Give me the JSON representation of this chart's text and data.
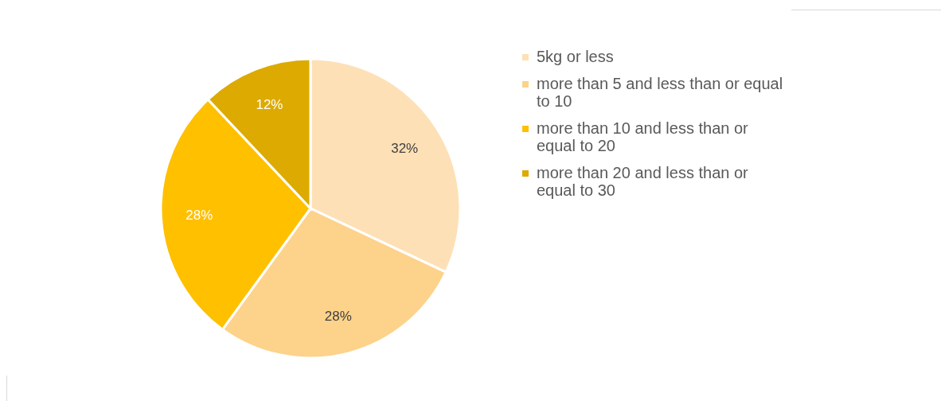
{
  "chart_data": {
    "type": "pie",
    "categories": [
      "5kg or less",
      "more than 5 and less than or equal to 10",
      "more than 10 and less than or equal to 20",
      "more than 20 and less than or equal to 30"
    ],
    "values": [
      32,
      28,
      28,
      12
    ],
    "colors": [
      "#fde0b6",
      "#fdd28a",
      "#ffc000",
      "#dcaa00"
    ],
    "value_labels": [
      "32%",
      "28%",
      "28%",
      "12%"
    ],
    "legend": "right"
  }
}
